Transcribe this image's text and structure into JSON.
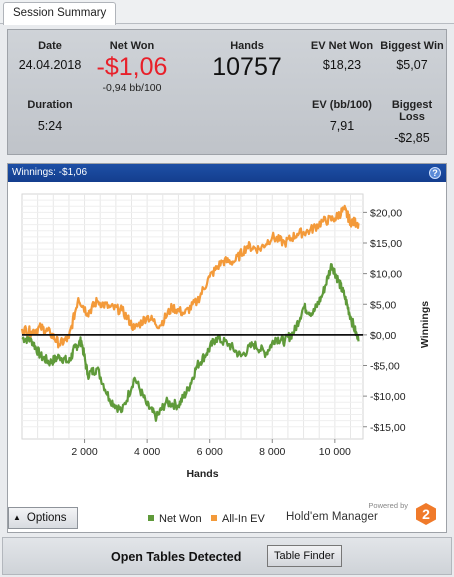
{
  "tab": {
    "label": "Session Summary"
  },
  "summary": {
    "date_label": "Date",
    "date_value": "24.04.2018",
    "netwon_label": "Net Won",
    "netwon_value": "-$1,06",
    "netwon_bb": "-0,94 bb/100",
    "hands_label": "Hands",
    "hands_value": "10757",
    "evnetwon_label": "EV Net Won",
    "evnetwon_value": "$18,23",
    "biggestwin_label": "Biggest Win",
    "biggestwin_value": "$5,07",
    "duration_label": "Duration",
    "duration_value": "5:24",
    "evbb_label": "EV (bb/100)",
    "evbb_value": "7,91",
    "biggestloss_label": "Biggest Loss",
    "biggestloss_value": "-$2,85"
  },
  "panel": {
    "header": "Winnings:  -$1,06",
    "help_icon": "question-icon"
  },
  "chart_data": {
    "type": "line",
    "xlabel": "Hands",
    "ylabel": "Winnings",
    "xlim": [
      0,
      10900
    ],
    "ylim": [
      -17,
      23
    ],
    "xticks": [
      2000,
      4000,
      6000,
      8000,
      10000
    ],
    "xtick_labels": [
      "2 000",
      "4 000",
      "6 000",
      "8 000",
      "10 000"
    ],
    "yticks": [
      20,
      15,
      10,
      5,
      0,
      -5,
      -10,
      -15
    ],
    "ytick_labels": [
      "$20,00",
      "$15,00",
      "$10,00",
      "$5,00",
      "$0,00",
      "-$5,00",
      "-$10,00",
      "-$15,00"
    ],
    "grid": true,
    "zero_line": true,
    "legend_position": "bottom",
    "series": [
      {
        "name": "Net Won",
        "color": "#5f9a3a",
        "x": [
          0,
          300,
          600,
          900,
          1200,
          1500,
          1700,
          1900,
          2100,
          2400,
          2800,
          3200,
          3600,
          4000,
          4300,
          4600,
          5000,
          5300,
          5600,
          5900,
          6200,
          6600,
          7000,
          7400,
          7800,
          8100,
          8400,
          8700,
          9000,
          9300,
          9600,
          9900,
          10100,
          10300,
          10500,
          10757
        ],
        "y": [
          -0.5,
          -0.8,
          -3.5,
          -4.5,
          -3.5,
          -4.5,
          -2.0,
          -1.0,
          -6.5,
          -5.5,
          -10.5,
          -12.5,
          -7.0,
          -11.5,
          -13.5,
          -11.0,
          -11.5,
          -9.0,
          -5.0,
          -3.0,
          -0.5,
          -1.5,
          -3.5,
          -1.5,
          -3.0,
          -0.5,
          -1.0,
          0.5,
          4.5,
          3.5,
          6.5,
          11.5,
          9.0,
          6.5,
          3.0,
          -1.06
        ]
      },
      {
        "name": "All-In EV",
        "color": "#f39a3a",
        "x": [
          0,
          300,
          600,
          900,
          1200,
          1500,
          1800,
          2100,
          2400,
          2800,
          3200,
          3600,
          4000,
          4400,
          4800,
          5200,
          5600,
          6000,
          6400,
          6800,
          7200,
          7600,
          8000,
          8400,
          8800,
          9200,
          9600,
          10000,
          10300,
          10500,
          10757
        ],
        "y": [
          1.0,
          0.5,
          1.2,
          0.3,
          -1.5,
          -0.5,
          6.0,
          3.5,
          5.5,
          4.5,
          4.0,
          1.0,
          3.0,
          1.5,
          4.5,
          3.5,
          5.5,
          9.5,
          12.0,
          12.0,
          14.5,
          14.0,
          16.0,
          15.0,
          16.5,
          17.0,
          18.5,
          19.0,
          20.5,
          18.5,
          18.23
        ]
      }
    ]
  },
  "options_button": {
    "label": "Options"
  },
  "legend": {
    "netwon": "Net Won",
    "allinev": "All-In EV"
  },
  "branding": {
    "powered_by": "Powered by",
    "name": "Hold'em Manager",
    "logo_number": "2",
    "logo_color": "#f07a2a"
  },
  "footer": {
    "label": "Open Tables Detected",
    "table_finder_label": "Table Finder"
  }
}
